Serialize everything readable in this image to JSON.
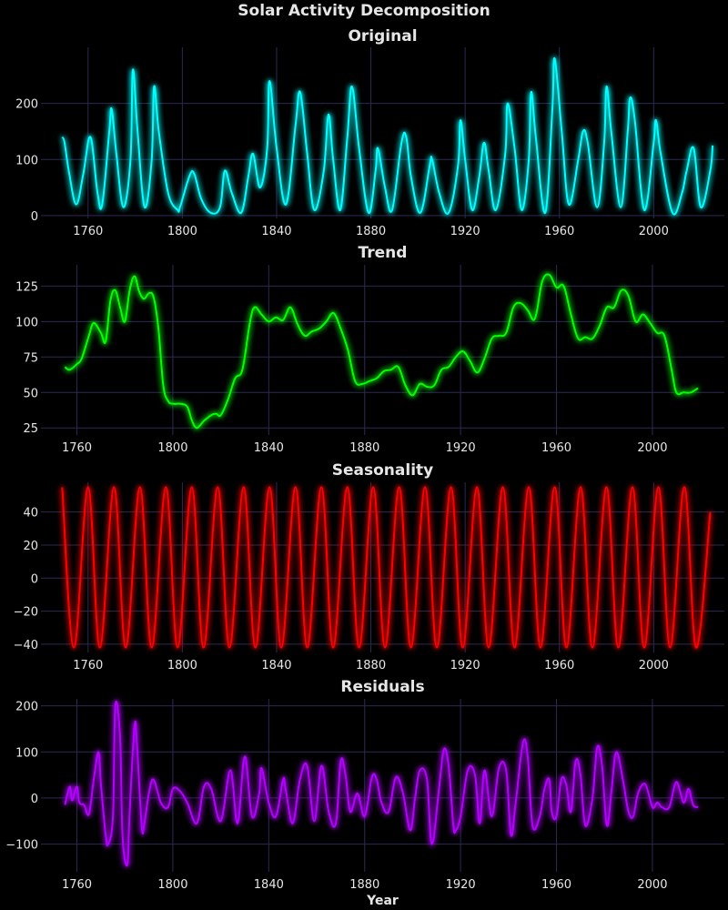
{
  "figure": {
    "title": "Solar Activity Decomposition"
  },
  "chart_data": [
    {
      "type": "line",
      "title": "Original",
      "xlabel": "",
      "ylabel": "",
      "xlim": [
        1740,
        2030
      ],
      "ylim": [
        -5,
        300
      ],
      "x_ticks": [
        1760,
        1800,
        1840,
        1880,
        1920,
        1960,
        2000
      ],
      "y_ticks": [
        0,
        100,
        200
      ],
      "grid": true,
      "color": "#00ffff",
      "series": [
        {
          "x": [
            1749,
            1750,
            1752,
            1755,
            1758,
            1761,
            1764,
            1766,
            1769,
            1770,
            1772,
            1775,
            1778,
            1779,
            1781,
            1784,
            1787,
            1788,
            1790,
            1794,
            1798,
            1799,
            1803,
            1805,
            1808,
            1812,
            1816,
            1818,
            1821,
            1825,
            1828,
            1830,
            1833,
            1836,
            1837,
            1840,
            1844,
            1848,
            1850,
            1853,
            1856,
            1860,
            1862,
            1864,
            1867,
            1870,
            1872,
            1875,
            1879,
            1882,
            1883,
            1886,
            1889,
            1893,
            1895,
            1897,
            1901,
            1905,
            1906,
            1909,
            1913,
            1917,
            1918,
            1920,
            1923,
            1926,
            1928,
            1930,
            1933,
            1937,
            1938,
            1941,
            1944,
            1947,
            1948,
            1950,
            1954,
            1957,
            1958,
            1961,
            1964,
            1968,
            1970,
            1972,
            1976,
            1979,
            1980,
            1982,
            1986,
            1989,
            1990,
            1992,
            1996,
            2000,
            2001,
            2003,
            2008,
            2012,
            2014,
            2017,
            2020,
            2024,
            2025
          ],
          "values": [
            140,
            130,
            75,
            20,
            75,
            140,
            40,
            20,
            150,
            190,
            110,
            15,
            100,
            260,
            150,
            15,
            100,
            230,
            150,
            40,
            10,
            15,
            70,
            75,
            30,
            5,
            15,
            80,
            40,
            5,
            70,
            110,
            50,
            120,
            240,
            120,
            20,
            160,
            220,
            110,
            10,
            80,
            180,
            100,
            10,
            140,
            230,
            120,
            5,
            80,
            120,
            50,
            10,
            130,
            140,
            70,
            5,
            90,
            100,
            40,
            5,
            90,
            170,
            100,
            10,
            70,
            130,
            80,
            10,
            110,
            200,
            120,
            10,
            100,
            220,
            140,
            5,
            190,
            280,
            150,
            20,
            100,
            150,
            130,
            15,
            130,
            230,
            150,
            15,
            150,
            210,
            170,
            10,
            130,
            170,
            110,
            5,
            40,
            80,
            120,
            15,
            80,
            125
          ]
        }
      ]
    },
    {
      "type": "line",
      "title": "Trend",
      "xlabel": "",
      "ylabel": "",
      "xlim": [
        1745,
        2030
      ],
      "ylim": [
        20,
        140
      ],
      "x_ticks": [
        1760,
        1800,
        1840,
        1880,
        1920,
        1960,
        2000
      ],
      "y_ticks": [
        25,
        50,
        75,
        100,
        125
      ],
      "grid": true,
      "color": "#00ff00",
      "series": [
        {
          "x": [
            1755,
            1757,
            1760,
            1762,
            1765,
            1767,
            1770,
            1772,
            1774,
            1776,
            1778,
            1780,
            1782,
            1784,
            1786,
            1788,
            1790,
            1792,
            1794,
            1796,
            1798,
            1800,
            1803,
            1806,
            1808,
            1810,
            1813,
            1816,
            1818,
            1820,
            1823,
            1826,
            1829,
            1832,
            1834,
            1837,
            1840,
            1843,
            1846,
            1849,
            1852,
            1855,
            1858,
            1861,
            1864,
            1867,
            1870,
            1873,
            1876,
            1879,
            1882,
            1885,
            1888,
            1891,
            1894,
            1897,
            1900,
            1903,
            1906,
            1909,
            1912,
            1915,
            1918,
            1921,
            1924,
            1927,
            1930,
            1933,
            1936,
            1939,
            1942,
            1945,
            1948,
            1951,
            1954,
            1957,
            1960,
            1963,
            1966,
            1969,
            1972,
            1975,
            1978,
            1981,
            1984,
            1987,
            1990,
            1993,
            1996,
            1999,
            2002,
            2005,
            2008,
            2010,
            2013,
            2016,
            2019
          ],
          "values": [
            68,
            66,
            70,
            74,
            90,
            99,
            92,
            86,
            115,
            122,
            110,
            100,
            122,
            132,
            121,
            116,
            120,
            117,
            95,
            55,
            44,
            42,
            42,
            40,
            30,
            25,
            30,
            34,
            35,
            34,
            45,
            60,
            66,
            98,
            110,
            105,
            100,
            103,
            101,
            110,
            98,
            90,
            93,
            95,
            100,
            106,
            95,
            80,
            58,
            56,
            58,
            60,
            65,
            66,
            68,
            55,
            48,
            56,
            54,
            55,
            66,
            68,
            75,
            79,
            72,
            64,
            74,
            88,
            90,
            92,
            110,
            113,
            108,
            102,
            128,
            133,
            124,
            125,
            105,
            88,
            89,
            88,
            97,
            110,
            110,
            122,
            118,
            100,
            105,
            99,
            92,
            90,
            66,
            50,
            50,
            50,
            53
          ]
        }
      ]
    },
    {
      "type": "line",
      "title": "Seasonality",
      "xlabel": "",
      "ylabel": "",
      "xlim": [
        1740,
        2030
      ],
      "ylim": [
        -45,
        58
      ],
      "x_ticks": [
        1760,
        1800,
        1840,
        1880,
        1920,
        1960,
        2000
      ],
      "y_ticks": [
        -40,
        -20,
        0,
        20,
        40
      ],
      "grid": true,
      "color": "#ff0000",
      "series": [
        {
          "x": [
            1749,
            1754,
            1760,
            1765,
            1771,
            1776,
            1782,
            1787,
            1793,
            1798,
            1804,
            1809,
            1815,
            1820,
            1826,
            1831,
            1837,
            1842,
            1848,
            1853,
            1859,
            1864,
            1870,
            1875,
            1881,
            1886,
            1892,
            1897,
            1903,
            1908,
            1914,
            1919,
            1925,
            1930,
            1936,
            1941,
            1947,
            1952,
            1958,
            1963,
            1969,
            1974,
            1980,
            1985,
            1991,
            1996,
            2002,
            2007,
            2013,
            2018,
            2024
          ],
          "values": [
            55,
            -42,
            55,
            -42,
            55,
            -42,
            55,
            -42,
            55,
            -42,
            55,
            -42,
            55,
            -42,
            55,
            -42,
            55,
            -42,
            55,
            -42,
            55,
            -42,
            55,
            -42,
            55,
            -42,
            55,
            -42,
            55,
            -42,
            55,
            -42,
            55,
            -42,
            55,
            -42,
            55,
            -42,
            55,
            -42,
            55,
            -42,
            55,
            -42,
            55,
            -42,
            55,
            -42,
            55,
            -42,
            40
          ]
        }
      ]
    },
    {
      "type": "line",
      "title": "Residuals",
      "xlabel": "Year",
      "ylabel": "",
      "xlim": [
        1745,
        2030
      ],
      "ylim": [
        -160,
        215
      ],
      "x_ticks": [
        1760,
        1800,
        1840,
        1880,
        1920,
        1960,
        2000
      ],
      "y_ticks": [
        -100,
        0,
        100,
        200
      ],
      "grid": true,
      "color": "#b300ff",
      "series": [
        {
          "x": [
            1755,
            1757,
            1758,
            1760,
            1761,
            1763,
            1765,
            1767,
            1769,
            1770,
            1772,
            1773,
            1775,
            1776,
            1778,
            1779,
            1781,
            1782,
            1784,
            1785,
            1787,
            1788,
            1790,
            1792,
            1795,
            1798,
            1800,
            1803,
            1806,
            1810,
            1813,
            1816,
            1820,
            1824,
            1827,
            1830,
            1833,
            1836,
            1837,
            1840,
            1843,
            1846,
            1847,
            1850,
            1853,
            1856,
            1859,
            1862,
            1865,
            1868,
            1870,
            1872,
            1874,
            1877,
            1880,
            1883,
            1885,
            1887,
            1890,
            1893,
            1896,
            1899,
            1901,
            1903,
            1906,
            1908,
            1911,
            1913,
            1915,
            1917,
            1918,
            1920,
            1923,
            1926,
            1928,
            1930,
            1933,
            1936,
            1939,
            1941,
            1943,
            1946,
            1948,
            1950,
            1953,
            1955,
            1957,
            1958,
            1960,
            1962,
            1964,
            1966,
            1968,
            1970,
            1972,
            1975,
            1977,
            1979,
            1981,
            1983,
            1985,
            1988,
            1990,
            1992,
            1994,
            1997,
            2000,
            2002,
            2004,
            2007,
            2010,
            2013,
            2015,
            2017,
            2019
          ],
          "values": [
            -15,
            25,
            -5,
            25,
            -10,
            -15,
            -35,
            40,
            100,
            30,
            -80,
            -100,
            -40,
            200,
            130,
            -80,
            -145,
            -30,
            155,
            120,
            -60,
            -60,
            10,
            40,
            -10,
            -20,
            20,
            15,
            -10,
            -55,
            25,
            20,
            -50,
            60,
            -55,
            90,
            -40,
            10,
            65,
            -10,
            -40,
            40,
            20,
            -55,
            40,
            70,
            -50,
            70,
            -30,
            -55,
            80,
            50,
            -30,
            10,
            -40,
            45,
            40,
            -10,
            -30,
            45,
            10,
            -70,
            0,
            60,
            40,
            -100,
            20,
            105,
            70,
            -60,
            -70,
            -40,
            60,
            50,
            -55,
            60,
            -40,
            65,
            60,
            -80,
            -10,
            120,
            90,
            -60,
            -40,
            20,
            40,
            -30,
            -40,
            40,
            30,
            -30,
            80,
            50,
            -60,
            0,
            110,
            70,
            -60,
            20,
            100,
            30,
            -30,
            -40,
            10,
            30,
            -20,
            -10,
            -20,
            -20,
            35,
            -10,
            20,
            -15,
            -20
          ]
        }
      ]
    }
  ]
}
